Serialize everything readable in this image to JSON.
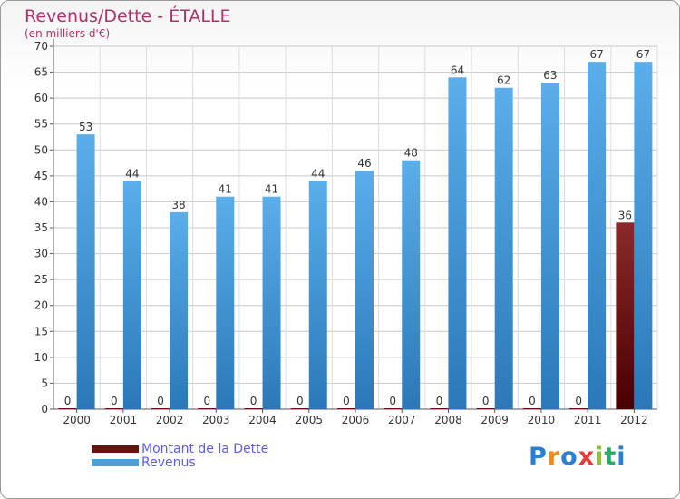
{
  "chart_data": {
    "type": "bar",
    "title": "Revenus/Dette - ÉTALLE",
    "subtitle": "(en milliers d'€)",
    "categories": [
      "2000",
      "2001",
      "2002",
      "2003",
      "2004",
      "2005",
      "2006",
      "2007",
      "2008",
      "2009",
      "2010",
      "2011",
      "2012"
    ],
    "series": [
      {
        "name": "Montant de la Dette",
        "color": "#6b0f0f",
        "values": [
          0,
          0,
          0,
          0,
          0,
          0,
          0,
          0,
          0,
          0,
          0,
          0,
          36
        ]
      },
      {
        "name": "Revenus",
        "color": "#4a9fe0",
        "values": [
          53,
          44,
          38,
          41,
          41,
          44,
          46,
          48,
          64,
          62,
          63,
          67,
          67
        ]
      }
    ],
    "yticks": [
      0,
      5,
      10,
      15,
      20,
      25,
      30,
      35,
      40,
      45,
      50,
      55,
      60,
      65,
      70
    ],
    "ylim": [
      0,
      70
    ],
    "grid": true,
    "legend_position": "bottom-left"
  },
  "logo": {
    "text": "Proxiti"
  }
}
